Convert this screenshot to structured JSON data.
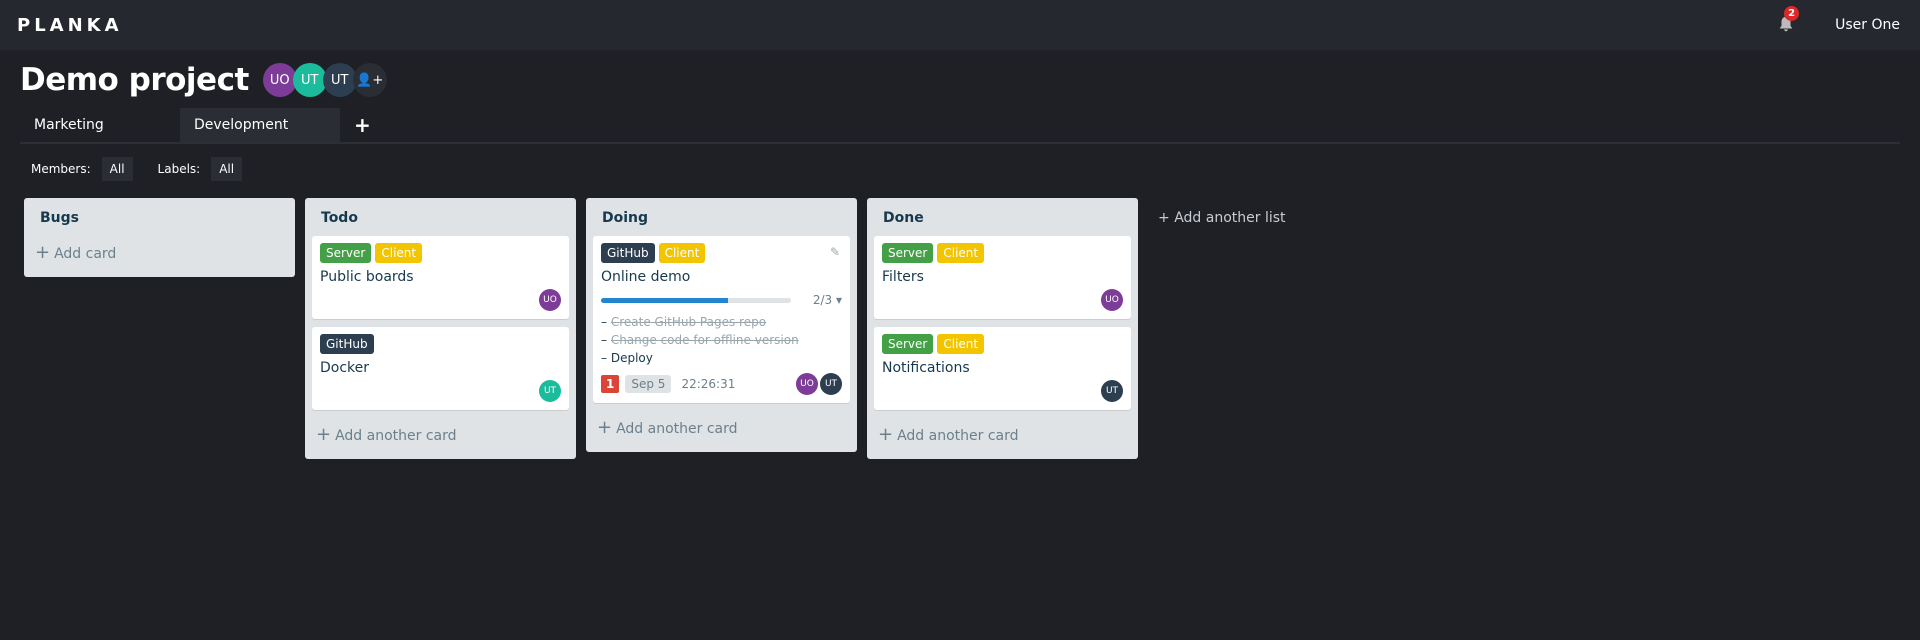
{
  "app": {
    "logo": "PLANKA",
    "notifications": "2",
    "user": "User One"
  },
  "project": {
    "title": "Demo project",
    "members": [
      {
        "initials": "UO",
        "color": "#7d3c98"
      },
      {
        "initials": "UT",
        "color": "#1abc9c"
      },
      {
        "initials": "UT",
        "color": "#2c3e50"
      }
    ]
  },
  "tabs": [
    "Marketing",
    "Development"
  ],
  "filters": {
    "members_label": "Members:",
    "members_value": "All",
    "labels_label": "Labels:",
    "labels_value": "All"
  },
  "colors": {
    "server": "#43a047",
    "client": "#f2c500",
    "github": "#2c3e50",
    "uo": "#7d3c98",
    "ut": "#2c3e50",
    "ut_teal": "#1abc9c"
  },
  "lists": [
    {
      "name": "Bugs",
      "add": "Add card"
    },
    {
      "name": "Todo",
      "add": "Add another card",
      "cards": [
        {
          "labels": [
            "Server",
            "Client"
          ],
          "title": "Public boards",
          "member": "UO"
        },
        {
          "labels": [
            "GitHub"
          ],
          "title": "Docker",
          "member": "UT"
        }
      ]
    },
    {
      "name": "Doing",
      "add": "Add another card",
      "cards": [
        {
          "labels": [
            "GitHub",
            "Client"
          ],
          "title": "Online demo",
          "progress": "2/3",
          "progress_fraction": 0.67,
          "tasks": [
            "Create GitHub Pages repo",
            "Change code for offline version",
            "Deploy"
          ],
          "tasks_done": [
            true,
            true,
            false
          ],
          "comments": "1",
          "due": "Sep 5",
          "timer": "22:26:31",
          "members": [
            "UO",
            "UT"
          ]
        }
      ]
    },
    {
      "name": "Done",
      "add": "Add another card",
      "cards": [
        {
          "labels": [
            "Server",
            "Client"
          ],
          "title": "Filters",
          "member": "UO"
        },
        {
          "labels": [
            "Server",
            "Client"
          ],
          "title": "Notifications",
          "member": "UT"
        }
      ]
    }
  ],
  "add_list": "Add another list"
}
